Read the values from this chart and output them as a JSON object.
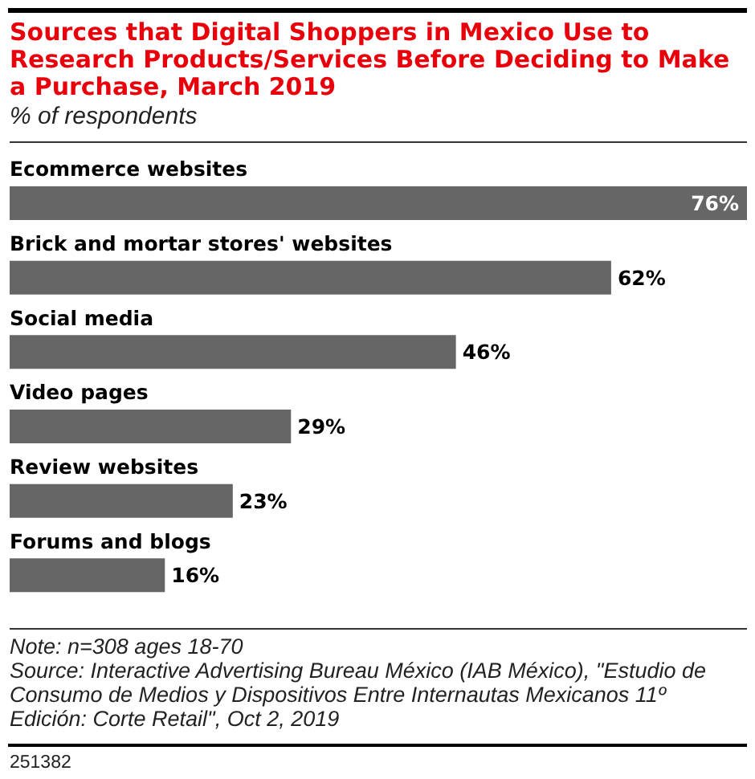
{
  "chart_data": {
    "type": "bar",
    "orientation": "horizontal",
    "title": "Sources that Digital Shoppers in Mexico Use to Research Products/Services Before Deciding to Make a Purchase, March 2019",
    "subtitle": "% of respondents",
    "categories": [
      "Ecommerce websites",
      "Brick and mortar stores' websites",
      "Social media",
      "Video pages",
      "Review websites",
      "Forums and blogs"
    ],
    "values": [
      76,
      62,
      46,
      29,
      23,
      16
    ],
    "color": "#666666",
    "value_labels": [
      "76%",
      "62%",
      "46%",
      "29%",
      "23%",
      "16%"
    ],
    "tick_labels": "y",
    "annotations": [
      "Note: n=308 ages 18-70",
      "Source: Interactive Advertising Bureau México (IAB México), \"Estudio de Consumo de Medios y Dispositivos Entre Internautas Mexicanos 11º Edición: Corte Retail\", Oct 2, 2019",
      "251382"
    ]
  }
}
